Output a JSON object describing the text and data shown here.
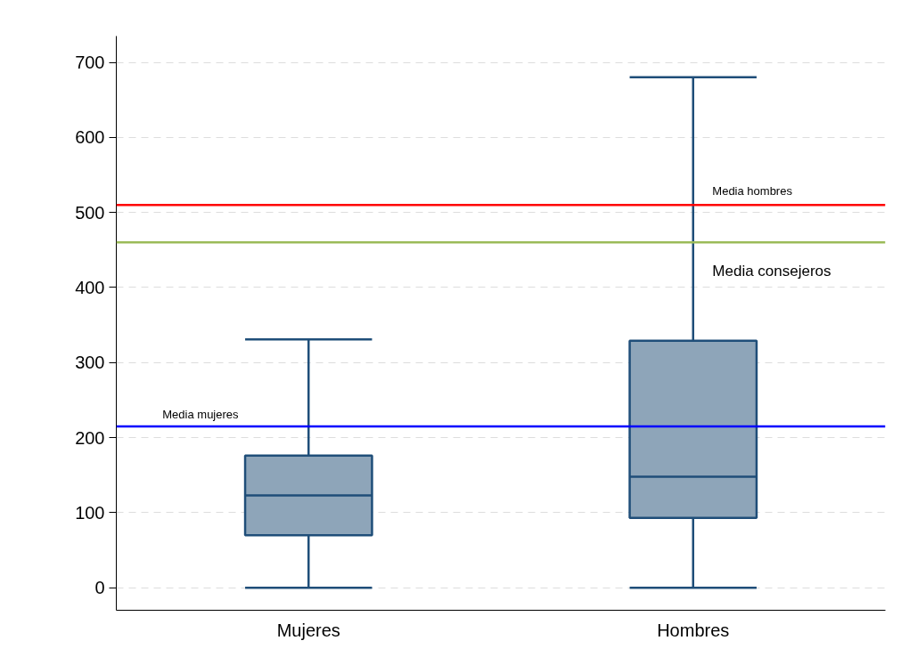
{
  "chart_data": {
    "type": "box",
    "categories": [
      "Mujeres",
      "Hombres"
    ],
    "boxes": [
      {
        "low": 0,
        "q1": 70,
        "median": 123,
        "q3": 176,
        "high": 331
      },
      {
        "low": 0,
        "q1": 93,
        "median": 148,
        "q3": 329,
        "high": 680
      }
    ],
    "color": "#8ea5b9",
    "ylim": [
      -30,
      735
    ],
    "yticks": [
      0,
      100,
      200,
      300,
      400,
      500,
      600,
      700
    ],
    "grid": "y",
    "ref_lines": [
      {
        "axis": "y",
        "value": 215,
        "label": "Media mujeres",
        "color": "#0000ff"
      },
      {
        "axis": "y",
        "value": 510,
        "label": "Media hombres",
        "color": "#ff0000"
      },
      {
        "axis": "y",
        "value": 460,
        "label": "Media consejeros",
        "color": "#9bbb59"
      }
    ]
  }
}
